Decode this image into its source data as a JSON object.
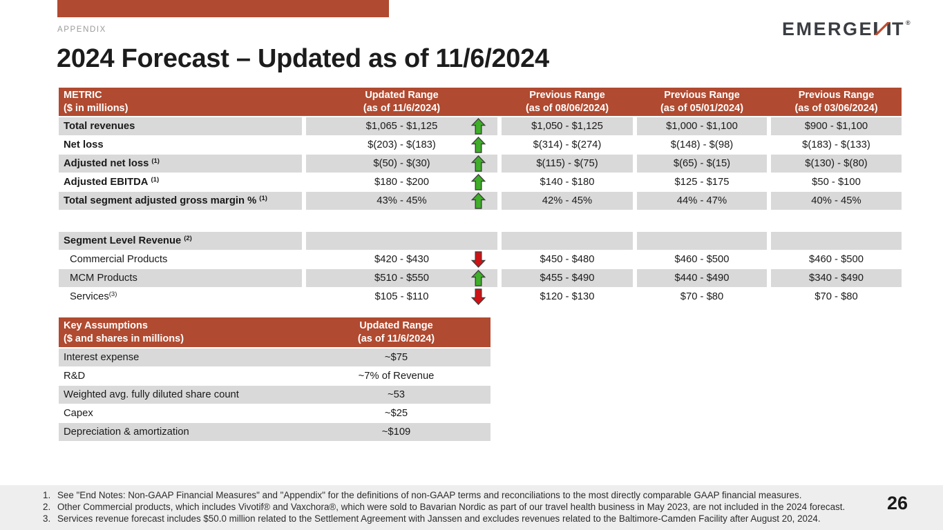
{
  "slide": {
    "eyebrow": "APPENDIX",
    "title": "2024 Forecast – Updated as of 11/6/2024",
    "page_number": "26",
    "logo": {
      "text_left": "EMERGE",
      "text_right": "T",
      "mark": "®",
      "name": "EMERGENT"
    },
    "colors": {
      "brand_red": "#B04A30",
      "row_gray": "#D9D9D9",
      "arrow_green": "#3FAE29",
      "arrow_red": "#D01215",
      "footer_bg": "#EEEEEE"
    }
  },
  "main_table": {
    "metric_header": {
      "line1": "METRIC",
      "line2": "($ in millions)"
    },
    "columns": [
      {
        "line1": "Updated Range",
        "line2": "(as of 11/6/2024)"
      },
      {
        "line1": "Previous Range",
        "line2": "(as of 08/06/2024)"
      },
      {
        "line1": "Previous Range",
        "line2": "(as of 05/01/2024)"
      },
      {
        "line1": "Previous Range",
        "line2": "(as of 03/06/2024)"
      }
    ],
    "rows": [
      {
        "label": "Total revenues",
        "bold": true,
        "shaded": true,
        "arrow": "up",
        "values": [
          "$1,065 - $1,125",
          "$1,050 - $1,125",
          "$1,000 - $1,100",
          "$900 - $1,100"
        ]
      },
      {
        "label": "Net loss",
        "bold": true,
        "shaded": false,
        "arrow": "up",
        "values": [
          "$(203) - $(183)",
          "$(314) - $(274)",
          "$(148) - $(98)",
          "$(183) - $(133)"
        ]
      },
      {
        "label": "Adjusted net loss",
        "sup": "(1)",
        "bold": true,
        "shaded": true,
        "arrow": "up",
        "values": [
          "$(50) - $(30)",
          "$(115) - $(75)",
          "$(65) - $(15)",
          "$(130) - $(80)"
        ]
      },
      {
        "label": "Adjusted EBITDA",
        "sup": "(1)",
        "bold": true,
        "shaded": false,
        "arrow": "up",
        "values": [
          "$180 - $200",
          "$140 - $180",
          "$125 - $175",
          "$50 - $100"
        ]
      },
      {
        "label": "Total segment adjusted gross margin %",
        "sup": "(1)",
        "bold": true,
        "shaded": true,
        "arrow": "up",
        "values": [
          "43% - 45%",
          "42% - 45%",
          "44% - 47%",
          "40% - 45%"
        ]
      }
    ],
    "segment_rows": [
      {
        "label": "Segment Level Revenue",
        "sup": "(2)",
        "bold": true,
        "shaded": true,
        "arrow": null,
        "values": [
          "",
          "",
          "",
          ""
        ]
      },
      {
        "label": "Commercial Products",
        "indent": true,
        "shaded": false,
        "arrow": "down",
        "values": [
          "$420 - $430",
          "$450 - $480",
          "$460 - $500",
          "$460 - $500"
        ]
      },
      {
        "label": "MCM Products",
        "indent": true,
        "shaded": true,
        "arrow": "up",
        "values": [
          "$510 - $550",
          "$455 - $490",
          "$440 - $490",
          "$340 - $490"
        ]
      },
      {
        "label": "Services",
        "sup": "(3)",
        "sup_tight": true,
        "indent": true,
        "shaded": false,
        "arrow": "down",
        "values": [
          "$105 - $110",
          "$120 - $130",
          "$70 - $80",
          "$70 - $80"
        ]
      }
    ]
  },
  "assumptions_table": {
    "header": {
      "line1": "Key Assumptions",
      "line2": "($ and shares in millions)"
    },
    "value_header": {
      "line1": "Updated Range",
      "line2": "(as of 11/6/2024)"
    },
    "rows": [
      {
        "label": "Interest expense",
        "value": "~$75",
        "shaded": true
      },
      {
        "label": "R&D",
        "value": "~7% of Revenue",
        "shaded": false
      },
      {
        "label": "Weighted avg. fully diluted share count",
        "value": "~53",
        "shaded": true
      },
      {
        "label": "Capex",
        "value": "~$25",
        "shaded": false
      },
      {
        "label": "Depreciation & amortization",
        "value": "~$109",
        "shaded": true
      }
    ]
  },
  "footnotes": [
    {
      "num": "1.",
      "text": "See \"End Notes: Non-GAAP Financial Measures\" and \"Appendix\" for the definitions of non-GAAP terms and reconciliations to the most directly comparable GAAP financial measures."
    },
    {
      "num": "2.",
      "text": "Other Commercial products, which includes Vivotif® and Vaxchora®, which were sold to Bavarian Nordic as part of our travel health business in May 2023, are not included in the 2024 forecast."
    },
    {
      "num": "3.",
      "text": "Services revenue forecast includes $50.0 million related to the Settlement Agreement with Janssen and excludes revenues related to the Baltimore-Camden Facility after August 20, 2024."
    }
  ]
}
